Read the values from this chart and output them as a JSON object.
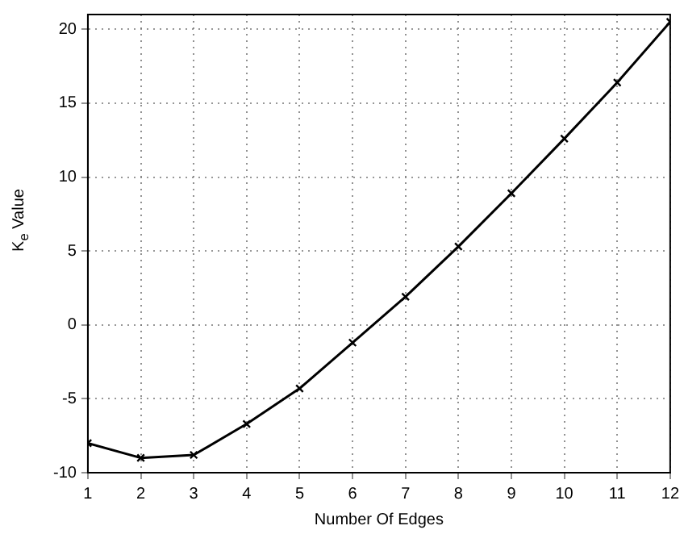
{
  "chart_data": {
    "type": "line",
    "xlabel": "Number Of Edges",
    "ylabel": "K$_{e}$ Value",
    "x": [
      1,
      2,
      3,
      4,
      5,
      6,
      7,
      8,
      9,
      10,
      11,
      12
    ],
    "series": [
      {
        "color": "#000000",
        "values": [
          -8,
          -9,
          -8.8,
          -6.7,
          -4.3,
          -1.2,
          1.9,
          5.3,
          8.9,
          12.6,
          16.4,
          20.5
        ]
      }
    ],
    "xlim": [
      1,
      12
    ],
    "xticks": [
      1,
      2,
      3,
      4,
      5,
      6,
      7,
      8,
      9,
      10,
      11,
      12
    ],
    "ylim": [
      -10,
      21
    ],
    "yticks": [
      -10,
      -5,
      0,
      5,
      10,
      15,
      20
    ],
    "grid": true,
    "marker": "cross",
    "line_style": "solid",
    "legend": false
  }
}
